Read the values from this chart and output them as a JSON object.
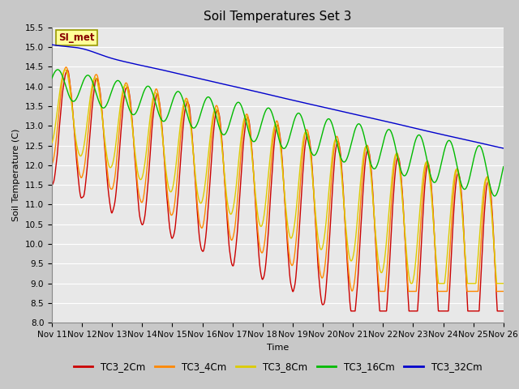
{
  "title": "Soil Temperatures Set 3",
  "xlabel": "Time",
  "ylabel": "Soil Temperature (C)",
  "ylim": [
    8.0,
    15.5
  ],
  "yticks": [
    8.0,
    8.5,
    9.0,
    9.5,
    10.0,
    10.5,
    11.0,
    11.5,
    12.0,
    12.5,
    13.0,
    13.5,
    14.0,
    14.5,
    15.0,
    15.5
  ],
  "xtick_labels": [
    "Nov 11",
    "Nov 12",
    "Nov 13",
    "Nov 14",
    "Nov 15",
    "Nov 16",
    "Nov 17",
    "Nov 18",
    "Nov 19",
    "Nov 20",
    "Nov 21",
    "Nov 22",
    "Nov 23",
    "Nov 24",
    "Nov 25",
    "Nov 26"
  ],
  "series": {
    "TC3_2Cm": {
      "color": "#cc0000",
      "linewidth": 1.0
    },
    "TC3_4Cm": {
      "color": "#ff8800",
      "linewidth": 1.0
    },
    "TC3_8Cm": {
      "color": "#ddcc00",
      "linewidth": 1.0
    },
    "TC3_16Cm": {
      "color": "#00bb00",
      "linewidth": 1.0
    },
    "TC3_32Cm": {
      "color": "#0000cc",
      "linewidth": 1.0
    }
  },
  "legend_label": "SI_met",
  "legend_box_color": "#ffff99",
  "legend_box_edge": "#999900",
  "legend_text_color": "#880000",
  "fig_bg_color": "#c8c8c8",
  "plot_bg_color": "#e8e8e8",
  "grid_color": "#ffffff",
  "title_fontsize": 11,
  "axis_fontsize": 8,
  "tick_fontsize": 7.5
}
